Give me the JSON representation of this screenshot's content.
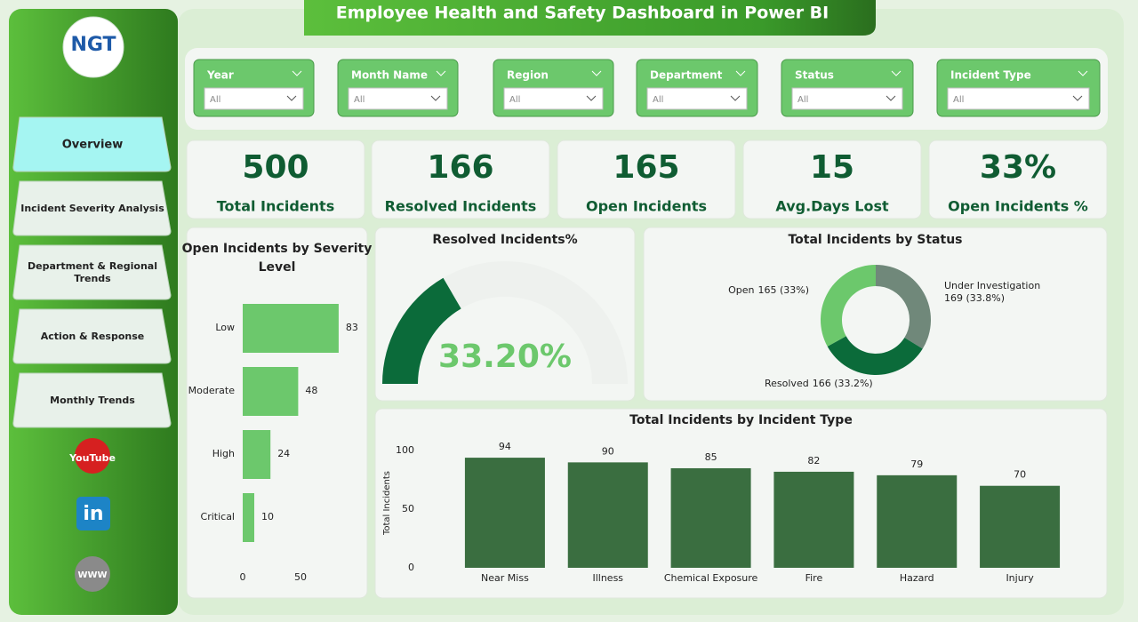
{
  "header": {
    "title": "Employee Health and Safety Dashboard in Power BI",
    "logo": "NGT"
  },
  "nav": [
    "Overview",
    "Incident Severity Analysis",
    "Department & Regional Trends",
    "Action & Response",
    "Monthly Trends"
  ],
  "social": [
    "YouTube",
    "in",
    "WWW"
  ],
  "filters": [
    {
      "label": "Year",
      "value": "All"
    },
    {
      "label": "Month Name",
      "value": "All"
    },
    {
      "label": "Region",
      "value": "All"
    },
    {
      "label": "Department",
      "value": "All"
    },
    {
      "label": "Status",
      "value": "All"
    },
    {
      "label": "Incident Type",
      "value": "All"
    }
  ],
  "kpis": [
    {
      "value": 500,
      "label": "Total Incidents"
    },
    {
      "value": 166,
      "label": "Resolved Incidents"
    },
    {
      "value": 165,
      "label": "Open Incidents"
    },
    {
      "value": 15,
      "label": "Avg.Days Lost"
    },
    {
      "value": 33,
      "value_label": "33%",
      "label": "Open Incidents %"
    }
  ],
  "chart_data": [
    {
      "type": "hbar",
      "title": "Open Incidents by Severity Level",
      "categories": [
        "Low",
        "Moderate",
        "High",
        "Critical"
      ],
      "values": [
        83,
        48,
        24,
        10
      ],
      "color": "#6cc86c",
      "xlim": [
        0,
        100
      ],
      "xticks": [
        0,
        50
      ]
    },
    {
      "type": "gauge",
      "title": "Resolved Incidents%",
      "value": 33.2,
      "value_label": "33.20%",
      "range": [
        0,
        100
      ],
      "color": "#0b6b3a"
    },
    {
      "type": "donut",
      "title": "Total Incidents by Status",
      "categories": [
        "Under Investigation",
        "Resolved",
        "Open"
      ],
      "values": [
        169,
        166,
        165
      ],
      "value_labels": [
        "169 (33.8%)",
        "166 (33.2%)",
        "165 (33%)"
      ],
      "colors": [
        "#70887a",
        "#0b6b3a",
        "#6cc86c"
      ]
    },
    {
      "type": "bar",
      "title": "Total Incidents by Incident Type",
      "y_label": "Total Incidents",
      "categories": [
        "Near Miss",
        "Illness",
        "Chemical Exposure",
        "Fire",
        "Hazard",
        "Injury"
      ],
      "values": [
        94,
        90,
        85,
        82,
        79,
        70
      ],
      "color": "#3a6e40",
      "ylim": [
        0,
        110
      ],
      "yticks": [
        0,
        50,
        100
      ]
    }
  ]
}
